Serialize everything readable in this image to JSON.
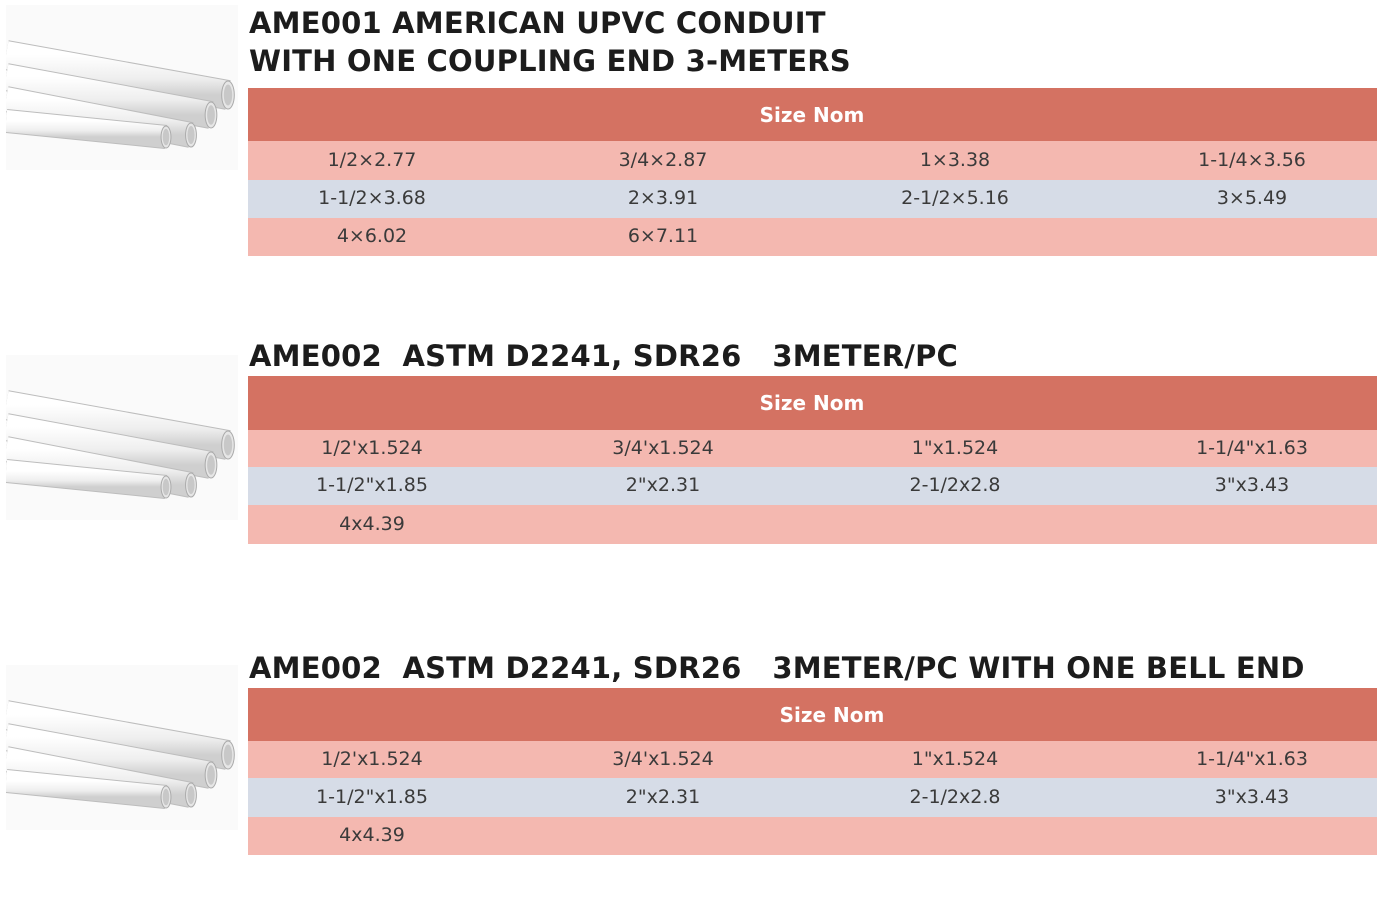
{
  "sections": [
    {
      "title": [
        "AME001 AMERICAN UPVC CONDUIT",
        "WITH ONE COUPLING END 3-METERS"
      ],
      "header": "Size Nom",
      "rows": [
        [
          "1/2×2.77",
          "3/4×2.87",
          "1×3.38",
          "1-1/4×3.56"
        ],
        [
          "1-1/2×3.68",
          "2×3.91",
          "2-1/2×5.16",
          "3×5.49"
        ],
        [
          "4×6.02",
          "6×7.11"
        ]
      ]
    },
    {
      "title": [
        "AME002  ASTM D2241, SDR26   3METER/PC"
      ],
      "header": "Size Nom",
      "rows": [
        [
          "1/2'x1.524",
          "3/4'x1.524",
          "1\"x1.524",
          "1-1/4\"x1.63"
        ],
        [
          "1-1/2\"x1.85",
          "2\"x2.31",
          "2-1/2x2.8",
          "3\"x3.43"
        ],
        [
          "4x4.39"
        ]
      ]
    },
    {
      "title": [
        "AME002  ASTM D2241, SDR26   3METER/PC WITH ONE BELL END"
      ],
      "header": "Size Nom",
      "rows": [
        [
          "1/2'x1.524",
          "3/4'x1.524",
          "1\"x1.524",
          "1-1/4\"x1.63"
        ],
        [
          "1-1/2\"x1.85",
          "2\"x2.31",
          "2-1/2x2.8",
          "3\"x3.43"
        ],
        [
          "4x4.39"
        ]
      ]
    }
  ]
}
